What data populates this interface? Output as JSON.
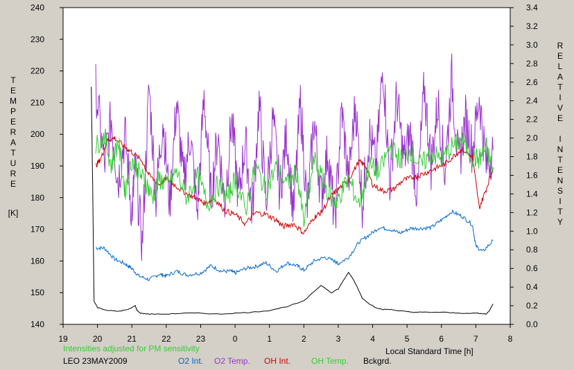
{
  "chart_data": {
    "type": "line",
    "title": "",
    "xlabel": "Local Standard Time [h]",
    "ylabel_left": [
      "T",
      "E",
      "M",
      "P",
      "E",
      "R",
      "A",
      "T",
      "U",
      "R",
      "E"
    ],
    "ylabel_left_unit": "[K]",
    "ylabel_right": [
      "R",
      "E",
      "L",
      "A",
      "T",
      "I",
      "V",
      "E",
      "",
      "I",
      "N",
      "T",
      "E",
      "N",
      "S",
      "I",
      "T",
      "Y"
    ],
    "x_ticks": [
      "19",
      "20",
      "21",
      "22",
      "23",
      "0",
      "1",
      "2",
      "3",
      "4",
      "5",
      "6",
      "7",
      "8"
    ],
    "xlim": [
      19,
      32
    ],
    "ylim_left": [
      140,
      240
    ],
    "y_ticks_left": [
      "140",
      "150",
      "160",
      "170",
      "180",
      "190",
      "200",
      "210",
      "220",
      "230",
      "240"
    ],
    "ylim_right": [
      0,
      3.4
    ],
    "y_ticks_right": [
      "0.0",
      "0.2",
      "0.4",
      "0.6",
      "0.8",
      "1.0",
      "1.2",
      "1.4",
      "1.6",
      "1.8",
      "2.0",
      "2.2",
      "2.4",
      "2.6",
      "2.8",
      "3.0",
      "3.2",
      "3.4"
    ],
    "grid": false,
    "series": [
      {
        "name": "O2 Int.",
        "axis": "right",
        "color": "#0066cc",
        "x": [
          19.95,
          20.2,
          20.5,
          20.8,
          21.0,
          21.2,
          21.5,
          21.8,
          22.0,
          22.3,
          22.6,
          23.0,
          23.3,
          23.6,
          23.9,
          24.0,
          24.3,
          24.6,
          24.9,
          25.2,
          25.5,
          25.8,
          26.0,
          26.3,
          26.6,
          26.9,
          27.0,
          27.3,
          27.6,
          27.9,
          28.2,
          28.5,
          28.8,
          29.1,
          29.4,
          29.7,
          30.0,
          30.3,
          30.6,
          30.9,
          31.0,
          31.2,
          31.5
        ],
        "y": [
          0.82,
          0.82,
          0.7,
          0.65,
          0.6,
          0.52,
          0.48,
          0.54,
          0.52,
          0.57,
          0.53,
          0.55,
          0.63,
          0.57,
          0.57,
          0.55,
          0.6,
          0.62,
          0.66,
          0.57,
          0.66,
          0.63,
          0.58,
          0.68,
          0.72,
          0.68,
          0.65,
          0.72,
          0.88,
          0.96,
          1.04,
          1.02,
          0.98,
          1.03,
          1.03,
          1.04,
          1.12,
          1.21,
          1.16,
          1.07,
          0.84,
          0.78,
          0.9
        ]
      },
      {
        "name": "O2 Temp.",
        "axis": "left",
        "color": "#9933cc",
        "x": [
          19.95,
          20.2,
          20.4,
          20.6,
          20.8,
          21.0,
          21.1,
          21.3,
          21.5,
          21.7,
          21.9,
          22.1,
          22.3,
          22.5,
          22.7,
          22.9,
          23.1,
          23.3,
          23.5,
          23.7,
          23.9,
          24.1,
          24.3,
          24.5,
          24.7,
          24.9,
          25.1,
          25.3,
          25.5,
          25.7,
          25.9,
          26.1,
          26.3,
          26.5,
          26.7,
          26.9,
          27.1,
          27.3,
          27.5,
          27.7,
          27.9,
          28.1,
          28.3,
          28.5,
          28.7,
          28.9,
          29.1,
          29.3,
          29.5,
          29.7,
          29.9,
          30.1,
          30.3,
          30.5,
          30.7,
          30.9,
          31.1,
          31.3,
          31.5
        ],
        "y": [
          215,
          190,
          205,
          185,
          200,
          175,
          190,
          165,
          215,
          180,
          205,
          178,
          210,
          185,
          200,
          175,
          212,
          180,
          200,
          178,
          205,
          180,
          198,
          175,
          210,
          178,
          205,
          182,
          200,
          175,
          210,
          176,
          205,
          180,
          195,
          172,
          208,
          185,
          210,
          178,
          200,
          190,
          222,
          185,
          212,
          192,
          200,
          180,
          215,
          190,
          210,
          188,
          218,
          190,
          205,
          195,
          212,
          190,
          195
        ]
      },
      {
        "name": "OH Int.",
        "axis": "right",
        "color": "#cc0000",
        "x": [
          19.95,
          20.1,
          20.3,
          20.5,
          20.8,
          21.0,
          21.3,
          21.5,
          21.8,
          22.0,
          22.3,
          22.6,
          22.9,
          23.1,
          23.4,
          23.7,
          24.0,
          24.3,
          24.6,
          24.9,
          25.2,
          25.4,
          25.7,
          26.0,
          26.3,
          26.5,
          26.8,
          27.0,
          27.3,
          27.6,
          27.8,
          28.0,
          28.3,
          28.6,
          28.9,
          29.2,
          29.5,
          29.8,
          30.1,
          30.4,
          30.6,
          30.9,
          31.1,
          31.3,
          31.5
        ],
        "y": [
          1.7,
          1.78,
          1.98,
          2.0,
          1.9,
          1.85,
          1.75,
          1.6,
          1.5,
          1.57,
          1.48,
          1.4,
          1.35,
          1.3,
          1.35,
          1.22,
          1.18,
          1.08,
          1.2,
          1.18,
          1.12,
          1.05,
          1.08,
          0.98,
          1.15,
          1.2,
          1.38,
          1.45,
          1.55,
          1.75,
          1.7,
          1.5,
          1.43,
          1.45,
          1.55,
          1.58,
          1.62,
          1.67,
          1.72,
          1.82,
          1.88,
          1.8,
          1.25,
          1.45,
          1.68
        ]
      },
      {
        "name": "OH Temp.",
        "axis": "left",
        "color": "#33cc33",
        "x": [
          19.95,
          20.2,
          20.4,
          20.6,
          20.8,
          21.0,
          21.2,
          21.4,
          21.6,
          21.8,
          22.0,
          22.3,
          22.6,
          22.9,
          23.2,
          23.5,
          23.8,
          24.0,
          24.3,
          24.6,
          24.9,
          25.2,
          25.5,
          25.8,
          26.0,
          26.3,
          26.6,
          26.9,
          27.0,
          27.3,
          27.6,
          27.9,
          28.2,
          28.5,
          28.8,
          29.1,
          29.4,
          29.7,
          30.0,
          30.3,
          30.6,
          30.9,
          31.1,
          31.3,
          31.5
        ],
        "y": [
          196,
          200,
          190,
          198,
          182,
          192,
          188,
          185,
          180,
          186,
          184,
          188,
          180,
          187,
          178,
          184,
          180,
          186,
          176,
          190,
          182,
          190,
          184,
          188,
          172,
          192,
          184,
          178,
          180,
          186,
          178,
          190,
          188,
          196,
          192,
          195,
          190,
          194,
          192,
          196,
          198,
          193,
          192,
          196,
          188
        ]
      },
      {
        "name": "Bckgrd.",
        "axis": "right",
        "color": "#000000",
        "x": [
          19.82,
          19.86,
          19.9,
          20.0,
          20.3,
          20.6,
          20.9,
          21.1,
          21.15,
          21.25,
          21.5,
          22.0,
          22.5,
          23.0,
          23.5,
          24.0,
          24.5,
          25.0,
          25.5,
          26.0,
          26.5,
          26.8,
          27.0,
          27.3,
          27.5,
          27.7,
          27.9,
          28.1,
          28.3,
          28.5,
          28.7,
          28.9,
          29.2,
          29.5,
          30.0,
          30.5,
          31.0,
          31.3,
          31.4,
          31.5
        ],
        "y": [
          2.55,
          1.5,
          0.25,
          0.18,
          0.15,
          0.14,
          0.16,
          0.2,
          0.15,
          0.12,
          0.11,
          0.11,
          0.12,
          0.12,
          0.11,
          0.12,
          0.13,
          0.15,
          0.19,
          0.25,
          0.42,
          0.34,
          0.38,
          0.56,
          0.44,
          0.28,
          0.22,
          0.18,
          0.16,
          0.16,
          0.15,
          0.14,
          0.13,
          0.13,
          0.13,
          0.12,
          0.12,
          0.11,
          0.15,
          0.22
        ]
      }
    ],
    "notes": {
      "adjust": "Intensities adjusted for PM sensitivity",
      "site_date": "LEO 23MAY2009"
    }
  }
}
